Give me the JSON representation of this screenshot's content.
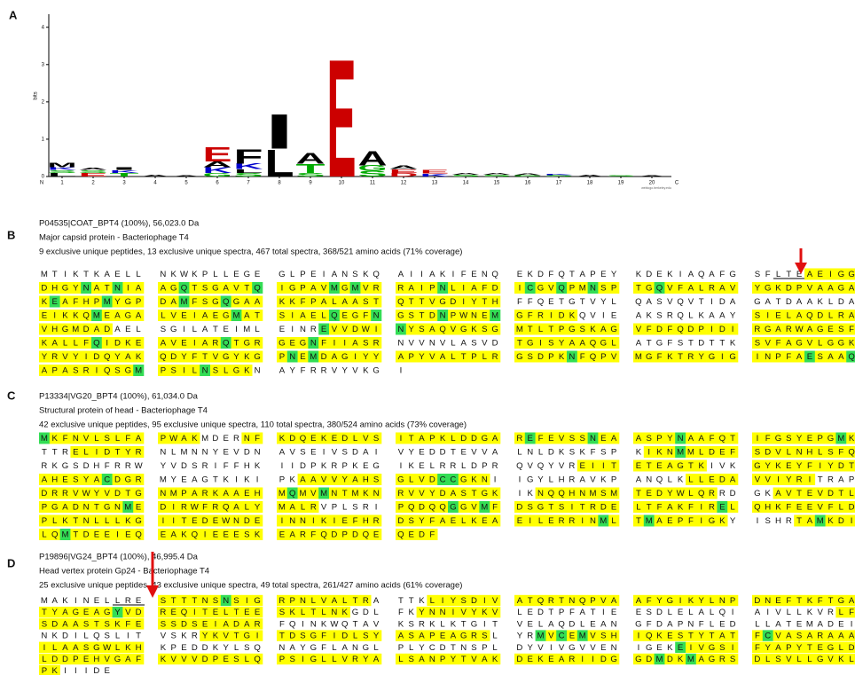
{
  "colors": {
    "y": "#ffff00",
    "g": "#33dd55"
  },
  "logo": {
    "label": "A",
    "ylabel": "bits",
    "ylim": [
      0,
      4.35
    ],
    "yticks": [
      0,
      1,
      2,
      3,
      4
    ],
    "xticks": [
      1,
      2,
      3,
      4,
      5,
      6,
      7,
      8,
      9,
      10,
      11,
      12,
      13,
      14,
      15,
      16,
      17,
      18,
      19,
      20
    ],
    "n_label": "N",
    "c_label": "C",
    "credit": "weblogo.berkeley.edu",
    "stacks": [
      {
        "position": 1,
        "letters": [
          {
            "letter": "L",
            "color": "#000000",
            "height": 0.1
          },
          {
            "letter": "S",
            "color": "#00aa00",
            "height": 0.08
          },
          {
            "letter": "K",
            "color": "#0000cc",
            "height": 0.07
          },
          {
            "letter": "M",
            "color": "#000000",
            "height": 0.12
          }
        ]
      },
      {
        "position": 2,
        "letters": [
          {
            "letter": "E",
            "color": "#cc0000",
            "height": 0.1
          },
          {
            "letter": "S",
            "color": "#00aa00",
            "height": 0.08
          },
          {
            "letter": "A",
            "color": "#000000",
            "height": 0.06
          }
        ]
      },
      {
        "position": 3,
        "letters": [
          {
            "letter": "T",
            "color": "#00aa00",
            "height": 0.1
          },
          {
            "letter": "K",
            "color": "#0000cc",
            "height": 0.08
          },
          {
            "letter": "I",
            "color": "#000000",
            "height": 0.07
          }
        ]
      },
      {
        "position": 4,
        "letters": [
          {
            "letter": "A",
            "color": "#000000",
            "height": 0.05
          }
        ]
      },
      {
        "position": 5,
        "letters": [
          {
            "letter": "A",
            "color": "#000000",
            "height": 0.03
          }
        ]
      },
      {
        "position": 6,
        "letters": [
          {
            "letter": "G",
            "color": "#00aa00",
            "height": 0.1
          },
          {
            "letter": "K",
            "color": "#0000cc",
            "height": 0.15
          },
          {
            "letter": "A",
            "color": "#000000",
            "height": 0.15
          },
          {
            "letter": "E",
            "color": "#cc0000",
            "height": 0.4
          }
        ]
      },
      {
        "position": 7,
        "letters": [
          {
            "letter": "S",
            "color": "#00aa00",
            "height": 0.1
          },
          {
            "letter": "L",
            "color": "#000000",
            "height": 0.1
          },
          {
            "letter": "K",
            "color": "#0000cc",
            "height": 0.15
          },
          {
            "letter": "F",
            "color": "#000000",
            "height": 0.4
          }
        ]
      },
      {
        "position": 8,
        "letters": [
          {
            "letter": "L",
            "color": "#000000",
            "height": 0.75
          },
          {
            "letter": "I",
            "color": "#000000",
            "height": 0.95
          }
        ]
      },
      {
        "position": 9,
        "letters": [
          {
            "letter": "S",
            "color": "#00aa00",
            "height": 0.1
          },
          {
            "letter": "T",
            "color": "#00aa00",
            "height": 0.25
          },
          {
            "letter": "A",
            "color": "#000000",
            "height": 0.3
          }
        ]
      },
      {
        "position": 10,
        "letters": [
          {
            "letter": "E",
            "color": "#cc0000",
            "height": 3.25
          }
        ]
      },
      {
        "position": 11,
        "letters": [
          {
            "letter": "S",
            "color": "#00aa00",
            "height": 0.15
          },
          {
            "letter": "G",
            "color": "#00aa00",
            "height": 0.15
          },
          {
            "letter": "A",
            "color": "#000000",
            "height": 0.4
          }
        ]
      },
      {
        "position": 12,
        "letters": [
          {
            "letter": "D",
            "color": "#cc0000",
            "height": 0.1
          },
          {
            "letter": "E",
            "color": "#cc0000",
            "height": 0.1
          },
          {
            "letter": "A",
            "color": "#000000",
            "height": 0.1
          }
        ]
      },
      {
        "position": 13,
        "letters": [
          {
            "letter": "K",
            "color": "#0000cc",
            "height": 0.08
          },
          {
            "letter": "E",
            "color": "#cc0000",
            "height": 0.1
          }
        ]
      },
      {
        "position": 14,
        "letters": [
          {
            "letter": "S",
            "color": "#00aa00",
            "height": 0.05
          },
          {
            "letter": "A",
            "color": "#000000",
            "height": 0.05
          }
        ]
      },
      {
        "position": 15,
        "letters": [
          {
            "letter": "S",
            "color": "#00aa00",
            "height": 0.05
          },
          {
            "letter": "A",
            "color": "#000000",
            "height": 0.04
          }
        ]
      },
      {
        "position": 16,
        "letters": [
          {
            "letter": "G",
            "color": "#00aa00",
            "height": 0.04
          },
          {
            "letter": "A",
            "color": "#000000",
            "height": 0.04
          }
        ]
      },
      {
        "position": 17,
        "letters": [
          {
            "letter": "S",
            "color": "#00aa00",
            "height": 0.04
          },
          {
            "letter": "K",
            "color": "#0000cc",
            "height": 0.03
          }
        ]
      },
      {
        "position": 18,
        "letters": [
          {
            "letter": "A",
            "color": "#000000",
            "height": 0.04
          }
        ]
      },
      {
        "position": 19,
        "letters": [
          {
            "letter": "S",
            "color": "#00aa00",
            "height": 0.03
          }
        ]
      },
      {
        "position": 20,
        "letters": [
          {
            "letter": "A",
            "color": "#000000",
            "height": 0.03
          }
        ]
      }
    ]
  },
  "panels": [
    {
      "label": "B",
      "id_line": "P04535|COAT_BPT4 (100%), 56,023.0 Da",
      "name_line": "Major capsid protein - Bacteriophage T4",
      "stats_line": "9 exclusive unique peptides, 13 exclusive unique spectra, 467 total spectra, 368/521 amino acids (71% coverage)",
      "rows": [
        [
          "MTIKTKAELL",
          "NKWKPLLEGE",
          "GLPEIANSKQ",
          "AIIAKIFENQ",
          "EKDFQTAPEY",
          "KDEKIAQAFG",
          "SFLTEAEIGG"
        ],
        [
          "DHGYNATNIA",
          "AGQTSGAVTQ",
          "IGPAVMGMVR",
          "RAIPNLIAFD",
          "ICGVQPMNSP",
          "TGQVFALRAV",
          "YGKDPVAAGA"
        ],
        [
          "KEAFHPMYGP",
          "DAMFSGQGAA",
          "KKFPALAAST",
          "QTTVGDIYTH",
          "FFQETGTVYL",
          "QASVQVTIDA",
          "GATDAAKLDA"
        ],
        [
          "EIKKQMEAGA",
          "LVEIAEGMAT",
          "SIAELQEGFN",
          "GSTDNPWNEM",
          "GFRIDKQVIE",
          "AKSRQLKAAY",
          "SIELAQDLRA"
        ],
        [
          "VHGMDADAEL",
          "SGILATEIML",
          "EINREVVDWI",
          "NYSAQVGKSG",
          "MTLTPGSKAG",
          "VFDFQDPIDI",
          "RGARWAGESF"
        ],
        [
          "KALLFQIDKE",
          "AVEIARQTGR",
          "GEGNFIIASR",
          "NVVNVLASVD",
          "TGISYAAQGL",
          "ATGFSTDTTK",
          "SVFAGVLGGK"
        ],
        [
          "YRVYIDQYAK",
          "QDYFTVGYKG",
          "PNEMDAGIYY",
          "APYVALTPLR",
          "GSDPKNFQPV",
          "MGFKTRYGIG",
          "INPFAESAAQ"
        ],
        [
          "APASRIQSGM",
          "PSILNSLGKN",
          "AYFRRVYVKG",
          "I"
        ]
      ],
      "coverage": [
        [
          "n",
          "n",
          "n",
          "n",
          "n",
          "n",
          "nnnnnyyyyy"
        ],
        [
          "yyyygyygyy",
          "yygyyyyyyg",
          "yyyyygygyy",
          "yyyygyyyyy",
          "ygyygyygyy",
          "yygyyyyyyy",
          "y"
        ],
        [
          "ygyyyygyyy",
          "yygyyygyyy",
          "y",
          "y",
          "n",
          "n",
          "n"
        ],
        [
          "yyyyygyyyy",
          "yyyyyyygyy",
          "yyyyygyyyg",
          "yyyygyyyyg",
          "yyyyyynnnn",
          "n",
          "y"
        ],
        [
          "yyyyyyynnn",
          "n",
          "nnnngyyyyy",
          "gyyyyyyyyy",
          "y",
          "y",
          "y"
        ],
        [
          "yyyyygyyyy",
          "yyyyyygyyy",
          "yyygyyyyyy",
          "n",
          "y",
          "n",
          "y"
        ],
        [
          "y",
          "y",
          "ygygyyyyyy",
          "y",
          "yyyyygyyyy",
          "y",
          "yyyyygyyyg"
        ],
        [
          "yyyyyyyyyg",
          "yyyygyyyyn",
          "n",
          "n"
        ]
      ]
    },
    {
      "label": "C",
      "id_line": "P13334|VG20_BPT4 (100%), 61,034.0 Da",
      "name_line": "Structural protein of head - Bacteriophage T4",
      "stats_line": "42 exclusive unique peptides, 95 exclusive unique spectra, 110 total spectra, 380/524 amino acids (73% coverage)",
      "rows": [
        [
          "MKFNVLSLFA",
          "PWAKMDERNF",
          "KDQEKEDLVS",
          "ITAPKLDDGA",
          "REFEVSSNEA",
          "ASPYNAAFQT",
          "IFGSYEPGMK"
        ],
        [
          "TTRELIDTYR",
          "NLMNNYEVDN",
          "AVSEIVSDAI",
          "VYEDDTEVVA",
          "LNLDKSKFSP",
          "KIKNMMLDEF",
          "SDVLNHLSFQ"
        ],
        [
          "RKGSDHFRRW",
          "YVDSRIFFHK",
          "IIDPKRPKEG",
          "IKELRRLDPR",
          "QVQYVREIIT",
          "ETEAGTKIVK",
          "GYKEYFIYDT"
        ],
        [
          "AHESYACDGR",
          "MYEAGTKIKI",
          "PKAAVVYAHS",
          "GLVDCCGKNI",
          "IGYLHRAVKP",
          "ANQLKLLEDA",
          "VVIYRITRAP"
        ],
        [
          "DRRVWYVDTG",
          "NMPARKAAEH",
          "MQMVMNTMKN",
          "RVVYDASTGK",
          "IKNQQHNMSM",
          "TEDYWLQRRD",
          "GKAVTEVDTL"
        ],
        [
          "PGADNTGNME",
          "DIRWFRQALY",
          "MALRVPLSRI",
          "PQDQQGGVMF",
          "DSGTSITRDE",
          "LTFAKFIREL",
          "QHKFEEVFLD"
        ],
        [
          "PLKTNLLLKG",
          "IITEDEWNDE",
          "INNIKIEFHR",
          "DSYFAELKEA",
          "EILERRINML",
          "TMAEPFIGKY",
          "ISHRTAMKDI"
        ],
        [
          "LQMTDEEIEQ",
          "EAKQIEEESK",
          "EARFQDPDQE",
          "QEDF"
        ]
      ],
      "coverage": [
        [
          "gyyyyyyyyy",
          "yyyynnnnyy",
          "y",
          "y",
          "ygyyyyygyy",
          "yyyygyyyyy",
          "yyyyyyyygy"
        ],
        [
          "nnnyyyyyyy",
          "n",
          "n",
          "n",
          "n",
          "nyyygyyyyy",
          "y"
        ],
        [
          "n",
          "n",
          "n",
          "n",
          "nnnnnnyyyy",
          "yyyyyyynnn",
          "y"
        ],
        [
          "yyyyyygyyy",
          "n",
          "nnyyyyyyyy",
          "yyyyggyyyn",
          "n",
          "nnnnnyyyyy",
          "yyyyyynnnn"
        ],
        [
          "y",
          "y",
          "ygyygyyyyy",
          "y",
          "nnyyyyyyyy",
          "yyyyyyyynn",
          "nnyyyyyyyy"
        ],
        [
          "yyyyyyyygy",
          "y",
          "yyyynnnnnn",
          "yyyyygyygy",
          "y",
          "yyyyyyyygy",
          "y"
        ],
        [
          "y",
          "y",
          "y",
          "y",
          "yyyyyyyygy",
          "ygyyyyyyyn",
          "nnnnyygyyy"
        ],
        [
          "yygyyyyyyy",
          "y",
          "y",
          "y"
        ]
      ]
    },
    {
      "label": "D",
      "id_line": "P19896|VG24_BPT4 (100%), 46,995.4 Da",
      "name_line": "Head vertex protein Gp24 - Bacteriophage T4",
      "stats_line": "25 exclusive unique peptides, 43 exclusive unique spectra, 49 total spectra, 261/427 amino acids (61% coverage)",
      "rows": [
        [
          "MAKINELLRE",
          "STTTNSNSIG",
          "RPNLVALTRA",
          "TTKLIYSDIV",
          "ATQRTNQPVA",
          "AFYGIKYLNP",
          "DNEFTKFTGA"
        ],
        [
          "TYAGEAGYVD",
          "REQITELTEE",
          "SKLTLNKGDL",
          "FKYNNIVYKV",
          "LEDTPFATIE",
          "ESDLELALQI",
          "AIVLLKVRLF"
        ],
        [
          "SDAASTSKFE",
          "SSDSEIADAR",
          "FQINKWQTAV",
          "KSRKLKTGIT",
          "VELAQDLEAN",
          "GFDAPNFLED",
          "LLATEMADEI"
        ],
        [
          "NKDILQSLIT",
          "VSKRYKVTGI",
          "TDSGFIDLSY",
          "ASAPEAGRSL",
          "YRMVCEMVSH",
          "IQKESTYTAT",
          "FCVASARAAA"
        ],
        [
          "ILAASGWLKH",
          "KPEDDKYLSQ",
          "NAYGFLANGL",
          "PLYCDTNSPL",
          "DYVIVGVVEN",
          "IGEKEIVGSI",
          "FYAPYTEGLD"
        ],
        [
          "LDDPEHVGAF",
          "KVVVDPESLQ",
          "PSIGLLVRYA",
          "LSANPYTVAK",
          "DEKEARIIDG",
          "GDMDKMAGRS",
          "DLSVLLGVKL"
        ],
        [
          "PKIIIDE"
        ]
      ],
      "coverage": [
        [
          "n",
          "yyyyyygyyy",
          "yyyyyyyyyn",
          "nnnyyyyyyy",
          "y",
          "y",
          "y"
        ],
        [
          "yyyyyyygyy",
          "y",
          "yyyyyyynnn",
          "nnyyyyyyyy",
          "n",
          "n",
          "nnnnnnnnyy"
        ],
        [
          "y",
          "y",
          "n",
          "n",
          "n",
          "n",
          "n"
        ],
        [
          "n",
          "nnnnyyyyyy",
          "y",
          "yyyyyyyyyn",
          "nngygygyyy",
          "y",
          "ygyyyyyyyy"
        ],
        [
          "y",
          "n",
          "n",
          "n",
          "n",
          "nnnngyyyyy",
          "y"
        ],
        [
          "y",
          "y",
          "y",
          "y",
          "y",
          "yygyygyyyy",
          "y"
        ],
        [
          "yynnnnn"
        ]
      ]
    }
  ]
}
